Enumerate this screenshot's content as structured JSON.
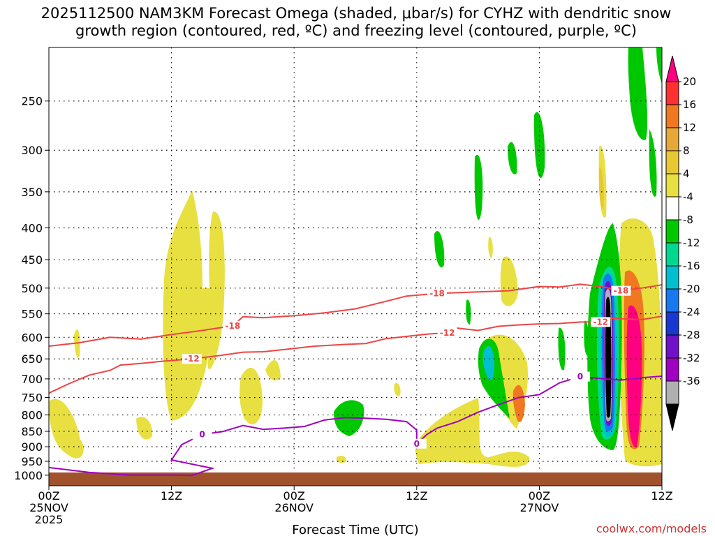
{
  "chart_data": {
    "type": "heatmap",
    "title_line1": "2025112500 NAM3KM Forecast Omega (shaded, μbar/s) for CYHZ with dendritic snow",
    "title_line2": "growth region (contoured, red, ºC) and freezing level (contoured, purple, ºC)",
    "xlabel": "Forecast Time (UTC)",
    "credit": "coolwx.com/models",
    "x_hours_range": [
      0,
      60
    ],
    "y_pressure_range": [
      205,
      1040
    ],
    "x_ticks": [
      {
        "hour": 0,
        "line1": "00Z",
        "line2": "25NOV",
        "line3": "2025"
      },
      {
        "hour": 12,
        "line1": "12Z",
        "line2": "",
        "line3": ""
      },
      {
        "hour": 24,
        "line1": "00Z",
        "line2": "26NOV",
        "line3": ""
      },
      {
        "hour": 36,
        "line1": "12Z",
        "line2": "",
        "line3": ""
      },
      {
        "hour": 48,
        "line1": "00Z",
        "line2": "27NOV",
        "line3": ""
      },
      {
        "hour": 60,
        "line1": "12Z",
        "line2": "",
        "line3": ""
      }
    ],
    "y_ticks": [
      {
        "p": 250,
        "label": "250"
      },
      {
        "p": 300,
        "label": "300"
      },
      {
        "p": 350,
        "label": "350"
      },
      {
        "p": 400,
        "label": "400"
      },
      {
        "p": 450,
        "label": "450"
      },
      {
        "p": 500,
        "label": "500"
      },
      {
        "p": 550,
        "label": "550"
      },
      {
        "p": 600,
        "label": "600"
      },
      {
        "p": 650,
        "label": "650"
      },
      {
        "p": 700,
        "label": "700"
      },
      {
        "p": 750,
        "label": "750"
      },
      {
        "p": 800,
        "label": "800"
      },
      {
        "p": 850,
        "label": "850"
      },
      {
        "p": 900,
        "label": "900"
      },
      {
        "p": 950,
        "label": "950"
      },
      {
        "p": 1000,
        "label": "1000"
      }
    ],
    "colorbar": {
      "levels": [
        "20",
        "16",
        "12",
        "8",
        "4",
        "-4",
        "-8",
        "-12",
        "-16",
        "-20",
        "-24",
        "-28",
        "-32",
        "-36"
      ],
      "colors": [
        "#ff0080",
        "#ff3030",
        "#f07820",
        "#e8a838",
        "#e8c830",
        "#e8e040",
        "#ffffff",
        "#00c800",
        "#00d890",
        "#00c0d0",
        "#1878f0",
        "#1838d0",
        "#7010c8",
        "#a000c0",
        "#b0b0b0",
        "#000000"
      ]
    },
    "contours": [
      {
        "name": "-18",
        "color": "#ee4444",
        "labels": [
          "-18",
          "-18",
          "-18"
        ],
        "points": [
          [
            0,
            620
          ],
          [
            3,
            612
          ],
          [
            6,
            600
          ],
          [
            9,
            604
          ],
          [
            12,
            594
          ],
          [
            15,
            585
          ],
          [
            18,
            575
          ],
          [
            19,
            556
          ],
          [
            21,
            558
          ],
          [
            24,
            554
          ],
          [
            27,
            548
          ],
          [
            30,
            540
          ],
          [
            32,
            530
          ],
          [
            33,
            525
          ],
          [
            35,
            515
          ],
          [
            38,
            510
          ],
          [
            42,
            507
          ],
          [
            45,
            505
          ],
          [
            48,
            497
          ],
          [
            50,
            498
          ],
          [
            52,
            493
          ],
          [
            54,
            497
          ],
          [
            56,
            505
          ],
          [
            58,
            500
          ],
          [
            60,
            494
          ]
        ]
      },
      {
        "name": "-12",
        "color": "#ee4444",
        "labels": [
          "-12",
          "-12",
          "-12"
        ],
        "points": [
          [
            0,
            738
          ],
          [
            2,
            712
          ],
          [
            4,
            690
          ],
          [
            6,
            678
          ],
          [
            7,
            665
          ],
          [
            9,
            661
          ],
          [
            11,
            656
          ],
          [
            14,
            650
          ],
          [
            17,
            641
          ],
          [
            19,
            634
          ],
          [
            21,
            633
          ],
          [
            23,
            628
          ],
          [
            26,
            620
          ],
          [
            29,
            616
          ],
          [
            31,
            614
          ],
          [
            33,
            603
          ],
          [
            35,
            598
          ],
          [
            37,
            593
          ],
          [
            39,
            590
          ],
          [
            40,
            580
          ],
          [
            42,
            585
          ],
          [
            44,
            576
          ],
          [
            46,
            573
          ],
          [
            48,
            571
          ],
          [
            50,
            570
          ],
          [
            52,
            567
          ],
          [
            54,
            567
          ],
          [
            55,
            559
          ],
          [
            58,
            562
          ],
          [
            60,
            555
          ]
        ]
      },
      {
        "name": "0",
        "color": "#a000c0",
        "labels": [
          "0",
          "0",
          "0"
        ],
        "points": [
          [
            0,
            972
          ],
          [
            4,
            990
          ],
          [
            8,
            1000
          ],
          [
            12,
            1000
          ],
          [
            14,
            1001
          ],
          [
            16,
            975
          ],
          [
            12,
            945
          ],
          [
            13,
            893
          ],
          [
            15,
            860
          ],
          [
            17,
            851
          ],
          [
            19,
            832
          ],
          [
            21,
            844
          ],
          [
            23,
            840
          ],
          [
            25,
            835
          ],
          [
            27,
            815
          ],
          [
            29,
            808
          ],
          [
            31,
            810
          ],
          [
            33,
            813
          ],
          [
            35,
            820
          ],
          [
            36,
            846
          ],
          [
            36,
            890
          ],
          [
            37,
            860
          ],
          [
            38,
            840
          ],
          [
            40,
            820
          ],
          [
            42,
            792
          ],
          [
            44,
            770
          ],
          [
            46,
            750
          ],
          [
            48,
            742
          ],
          [
            50,
            710
          ],
          [
            52,
            694
          ],
          [
            54,
            699
          ],
          [
            56,
            703
          ],
          [
            58,
            697
          ],
          [
            60,
            693
          ]
        ]
      }
    ]
  }
}
